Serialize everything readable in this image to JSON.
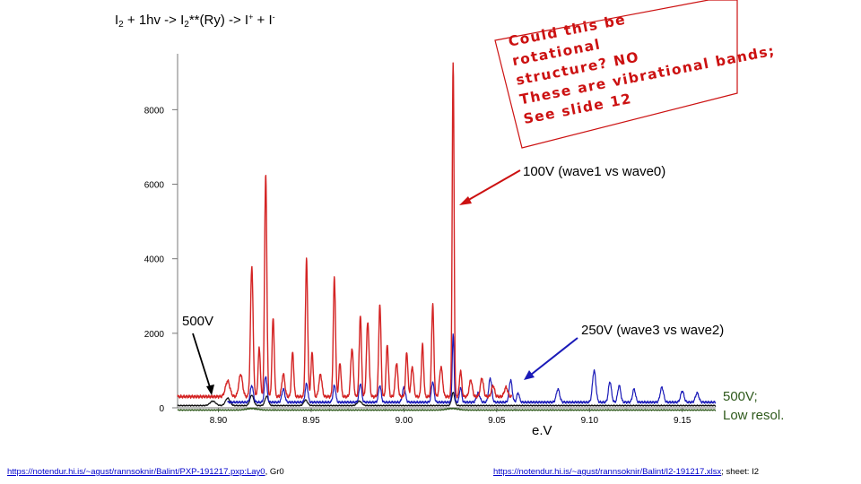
{
  "title": {
    "prefix": "I",
    "sub1": "2",
    "mid1": " + 1hv -> I",
    "sub2": "2",
    "mid2": "**(Ry) -> I",
    "sup1": "+",
    "mid3": " + I",
    "sup2": "-"
  },
  "note": {
    "lines": [
      "Could this be",
      "rotational",
      "structure? NO",
      "These are vibrational bands;",
      "See slide 12"
    ],
    "color": "#cc1111"
  },
  "labels": {
    "wave100": "100V (wave1 vs wave0)",
    "wave500": "500V",
    "wave250": "250V (wave3 vs wave2)",
    "low_line1": "500V;",
    "low_line2": "Low resol.",
    "xunit": "e.V"
  },
  "links": {
    "left_url": "https://notendur.hi.is/~agust/rannsoknir/Balint/PXP-191217.pxp:Lay0",
    "left_suffix": ", Gr0",
    "right_url": "https://notendur.hi.is/~agust/rannsoknir/Balint/I2-191217.xlsx",
    "right_suffix": "; sheet: I2"
  },
  "colors": {
    "red": "#d42424",
    "blue": "#1a1ab8",
    "black": "#111111",
    "green": "#2f5a1c",
    "arrow_red": "#cc1111",
    "arrow_blue": "#1a1ab8"
  },
  "chart_data": {
    "type": "line",
    "xlim": [
      8.878,
      9.168
    ],
    "ylim": [
      0,
      9500
    ],
    "x_ticks": [
      8.9,
      8.95,
      9.0,
      9.05,
      9.1,
      9.15
    ],
    "x_tick_labels": [
      "8.90",
      "8.95",
      "9.00",
      "9.05",
      "9.10",
      "9.15"
    ],
    "y_ticks": [
      0,
      2000,
      4000,
      6000,
      8000
    ],
    "y_tick_labels": [
      "0",
      "2000",
      "4000",
      "6000",
      "8000"
    ],
    "series": [
      {
        "name": "100V (wave1 vs wave0)",
        "color": "#d42424",
        "baseline": 300,
        "peaks": [
          [
            8.905,
            420,
            0.0012
          ],
          [
            8.912,
            600,
            0.001
          ],
          [
            8.918,
            3500,
            0.0007
          ],
          [
            8.922,
            1300,
            0.0006
          ],
          [
            8.9255,
            6000,
            0.0006
          ],
          [
            8.9295,
            2100,
            0.0006
          ],
          [
            8.935,
            600,
            0.0008
          ],
          [
            8.94,
            1200,
            0.0006
          ],
          [
            8.9475,
            3700,
            0.0006
          ],
          [
            8.9505,
            1200,
            0.0006
          ],
          [
            8.955,
            600,
            0.0008
          ],
          [
            8.9625,
            3200,
            0.0006
          ],
          [
            8.9655,
            900,
            0.0006
          ],
          [
            8.972,
            1300,
            0.0007
          ],
          [
            8.9765,
            2200,
            0.0006
          ],
          [
            8.9805,
            2000,
            0.0007
          ],
          [
            8.987,
            2500,
            0.0006
          ],
          [
            8.991,
            1400,
            0.0006
          ],
          [
            8.996,
            900,
            0.0007
          ],
          [
            9.0015,
            1200,
            0.0006
          ],
          [
            9.0045,
            800,
            0.0007
          ],
          [
            9.01,
            1400,
            0.0006
          ],
          [
            9.0155,
            2500,
            0.0006
          ],
          [
            9.02,
            800,
            0.0008
          ],
          [
            9.0265,
            8950,
            0.0005
          ],
          [
            9.0305,
            700,
            0.0006
          ],
          [
            9.036,
            450,
            0.0008
          ],
          [
            9.042,
            500,
            0.0008
          ],
          [
            9.048,
            300,
            0.0008
          ],
          [
            9.055,
            250,
            0.0009
          ]
        ],
        "x_end": 9.058
      },
      {
        "name": "250V (wave3 vs wave2)",
        "color": "#1a1ab8",
        "baseline": 150,
        "peaks": [
          [
            8.918,
            450,
            0.0008
          ],
          [
            8.9255,
            700,
            0.0007
          ],
          [
            8.935,
            350,
            0.0008
          ],
          [
            8.9475,
            500,
            0.0007
          ],
          [
            8.9625,
            450,
            0.0007
          ],
          [
            8.9765,
            500,
            0.0007
          ],
          [
            8.987,
            450,
            0.0007
          ],
          [
            9.0,
            400,
            0.0008
          ],
          [
            9.0155,
            550,
            0.0007
          ],
          [
            9.0265,
            1800,
            0.0005
          ],
          [
            9.0305,
            400,
            0.0006
          ],
          [
            9.04,
            250,
            0.0009
          ],
          [
            9.0465,
            650,
            0.0008
          ],
          [
            9.0575,
            600,
            0.0008
          ],
          [
            9.0615,
            250,
            0.0007
          ],
          [
            9.083,
            350,
            0.0009
          ],
          [
            9.1025,
            850,
            0.0009
          ],
          [
            9.111,
            550,
            0.0008
          ],
          [
            9.116,
            450,
            0.0008
          ],
          [
            9.124,
            350,
            0.0008
          ],
          [
            9.139,
            400,
            0.0009
          ],
          [
            9.15,
            300,
            0.0009
          ],
          [
            9.158,
            250,
            0.0009
          ]
        ],
        "x_start": 8.905
      },
      {
        "name": "500V",
        "color": "#111111",
        "baseline": 60,
        "peaks": [
          [
            8.897,
            120,
            0.0015
          ],
          [
            8.905,
            200,
            0.0012
          ],
          [
            8.918,
            280,
            0.001
          ],
          [
            8.926,
            250,
            0.0009
          ],
          [
            8.947,
            150,
            0.001
          ],
          [
            8.976,
            120,
            0.0012
          ],
          [
            9.0265,
            350,
            0.0008
          ]
        ]
      },
      {
        "name": "500V; Low resol.",
        "color": "#2f5a1c",
        "baseline": -60,
        "peaks": [
          [
            8.918,
            40,
            0.003
          ],
          [
            9.026,
            40,
            0.003
          ]
        ]
      }
    ]
  }
}
